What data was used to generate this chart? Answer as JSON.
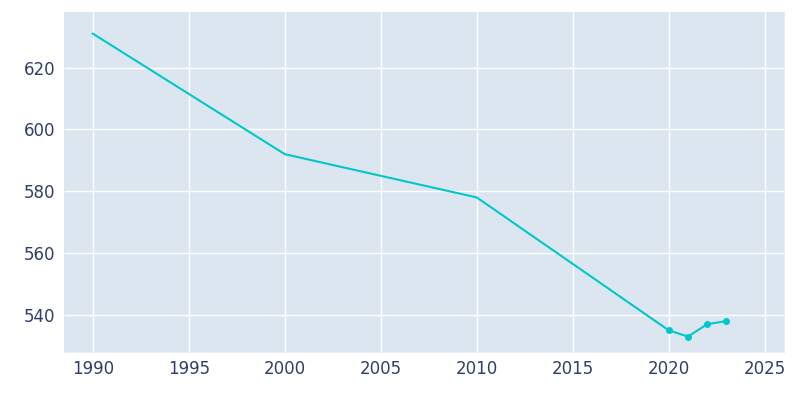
{
  "years": [
    1990,
    2000,
    2010,
    2020,
    2021,
    2022,
    2023
  ],
  "population": [
    631,
    592,
    578,
    535,
    533,
    537,
    538
  ],
  "line_color": "#00C8C8",
  "marker_color": "#00C8C8",
  "plot_bg_color": "#DCE6F1",
  "fig_bg_color": "#FFFFFF",
  "grid_color": "#FFFFFF",
  "xlabel": "",
  "ylabel": "",
  "xlim": [
    1988.5,
    2026
  ],
  "ylim": [
    528,
    638
  ],
  "xticks": [
    1990,
    1995,
    2000,
    2005,
    2010,
    2015,
    2020,
    2025
  ],
  "yticks": [
    540,
    560,
    580,
    600,
    620
  ],
  "tick_color": "#2F3F6A",
  "tick_fontsize": 12
}
